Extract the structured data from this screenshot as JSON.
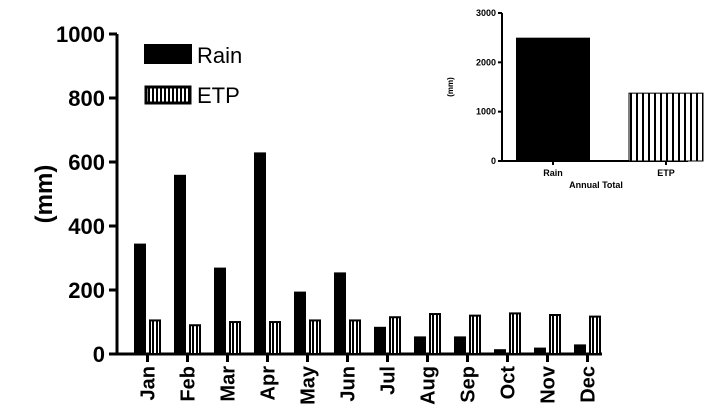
{
  "chart_data": [
    {
      "type": "bar",
      "ylabel": "(mm)",
      "ylim": [
        0,
        1000
      ],
      "yticks": [
        0,
        200,
        400,
        600,
        800,
        1000
      ],
      "categories": [
        "Jan",
        "Feb",
        "Mar",
        "Apr",
        "May",
        "Jun",
        "Jul",
        "Aug",
        "Sep",
        "Oct",
        "Nov",
        "Dec"
      ],
      "series": [
        {
          "name": "Rain",
          "fill": "solid-black",
          "values": [
            345,
            560,
            270,
            630,
            195,
            255,
            85,
            55,
            55,
            15,
            20,
            30
          ]
        },
        {
          "name": "ETP",
          "fill": "vertical-stripes",
          "values": [
            108,
            93,
            103,
            103,
            108,
            108,
            118,
            128,
            123,
            130,
            125,
            120
          ]
        }
      ],
      "legend_position": "top-left",
      "grid": false
    },
    {
      "type": "bar",
      "ylabel": "(mm)",
      "xlabel": "Annual Total",
      "ylim": [
        0,
        3000
      ],
      "yticks": [
        0,
        1000,
        2000,
        3000
      ],
      "categories": [
        "Rain",
        "ETP"
      ],
      "values": [
        2500,
        1375
      ],
      "fills": [
        "solid-black",
        "vertical-stripes"
      ],
      "legend_position": "none",
      "grid": false
    }
  ]
}
